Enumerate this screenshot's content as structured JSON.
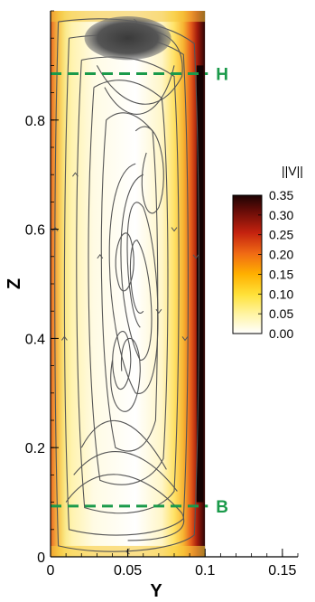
{
  "chart_data": {
    "type": "contour",
    "xlabel": "Y",
    "ylabel": "Z",
    "xlim": [
      0,
      0.16
    ],
    "ylim": [
      0,
      1.0
    ],
    "x_ticks": [
      "0",
      "0.05",
      "0.1",
      "0.15"
    ],
    "x_tick_values": [
      0,
      0.05,
      0.1,
      0.15
    ],
    "y_ticks": [
      "0",
      "0.2",
      "0.4",
      "0.6",
      "0.8"
    ],
    "y_tick_values": [
      0,
      0.2,
      0.4,
      0.6,
      0.8
    ],
    "field_extent": {
      "y": [
        0,
        0.1
      ],
      "z": [
        0,
        1.0
      ]
    },
    "colorbar": {
      "title": "||V||",
      "labels": [
        "0.35",
        "0.30",
        "0.25",
        "0.20",
        "0.15",
        "0.10",
        "0.05",
        "0.00"
      ],
      "values": [
        0.35,
        0.3,
        0.25,
        0.2,
        0.15,
        0.1,
        0.05,
        0.0
      ],
      "colors": [
        "#ffffff",
        "#fff6a8",
        "#ffe23a",
        "#ffb000",
        "#f47a10",
        "#d8361a",
        "#8e1208",
        "#200404"
      ]
    },
    "markers": [
      {
        "label": "H",
        "z": 0.885,
        "color": "#1a9a4a"
      },
      {
        "label": "B",
        "z": 0.093,
        "color": "#1a9a4a"
      }
    ],
    "streamline_color": "#555555"
  }
}
